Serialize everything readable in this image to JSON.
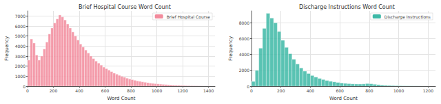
{
  "chart_data": [
    {
      "type": "histogram",
      "title": "Brief Hospital Course Word Count",
      "xlabel": "Word Count",
      "ylabel": "Frequency",
      "series": [
        {
          "name": "Brief Hospital Course",
          "color": "#f28b9c",
          "bins": [
            0,
            20,
            40,
            60,
            80,
            100,
            120,
            140,
            160,
            180,
            200,
            220,
            240,
            260,
            280,
            300,
            320,
            340,
            360,
            380,
            400,
            420,
            440,
            460,
            480,
            500,
            520,
            540,
            560,
            580,
            600,
            620,
            640,
            660,
            680,
            700,
            720,
            740,
            760,
            780,
            800,
            820,
            840,
            860,
            880,
            900,
            920,
            940,
            960,
            980,
            1000,
            1020,
            1040,
            1060,
            1080,
            1100,
            1120,
            1140,
            1160,
            1180,
            1200,
            1220,
            1240,
            1260,
            1280,
            1300,
            1320,
            1340,
            1360,
            1380,
            1400,
            1420,
            1440
          ],
          "values": [
            2600,
            4700,
            4300,
            3100,
            2600,
            3000,
            3700,
            4400,
            5200,
            5800,
            6300,
            6700,
            7100,
            6900,
            6600,
            6200,
            5800,
            5400,
            5000,
            4600,
            4200,
            3900,
            3600,
            3300,
            3000,
            2750,
            2500,
            2300,
            2100,
            1900,
            1750,
            1600,
            1450,
            1300,
            1200,
            1080,
            980,
            890,
            800,
            720,
            650,
            590,
            530,
            480,
            430,
            390,
            350,
            310,
            280,
            250,
            225,
            200,
            180,
            160,
            145,
            130,
            115,
            105,
            95,
            85,
            75,
            68,
            60,
            54,
            48,
            43,
            38,
            34,
            30,
            27,
            24,
            21
          ]
        }
      ],
      "xlim": [
        0,
        1450
      ],
      "xticks": [
        0,
        200,
        400,
        600,
        800,
        1000,
        1200,
        1400
      ],
      "ylim": [
        0,
        7500
      ],
      "yticks": [
        0,
        1000,
        2000,
        3000,
        4000,
        5000,
        6000,
        7000
      ],
      "grid": true,
      "legend": "upper right"
    },
    {
      "type": "histogram",
      "title": "Discharge Instructions Word Count",
      "xlabel": "Word Count",
      "ylabel": "Frequency",
      "series": [
        {
          "name": "Discharge Instructions",
          "color": "#3db8a6",
          "bins": [
            0,
            25,
            50,
            75,
            100,
            125,
            150,
            175,
            200,
            225,
            250,
            275,
            300,
            325,
            350,
            375,
            400,
            425,
            450,
            475,
            500,
            525,
            550,
            575,
            600,
            625,
            650,
            675,
            700,
            725,
            750,
            775,
            800,
            825,
            850,
            875,
            900,
            925,
            950,
            975,
            1000,
            1025,
            1050,
            1075,
            1100,
            1125,
            1150,
            1175,
            1200
          ],
          "values": [
            600,
            2000,
            4800,
            7300,
            9200,
            8600,
            8000,
            6900,
            5800,
            4900,
            4100,
            3400,
            2800,
            2300,
            1900,
            1600,
            1350,
            1150,
            980,
            840,
            720,
            620,
            540,
            470,
            410,
            360,
            320,
            290,
            270,
            260,
            280,
            330,
            300,
            240,
            190,
            150,
            120,
            100,
            85,
            70,
            60,
            50,
            42,
            36,
            30,
            25,
            20,
            16
          ]
        }
      ],
      "xlim": [
        0,
        1250
      ],
      "xticks": [
        0,
        200,
        400,
        600,
        800,
        1000,
        1200
      ],
      "ylim": [
        0,
        9500
      ],
      "yticks": [
        0,
        2000,
        4000,
        6000,
        8000
      ],
      "grid": true,
      "legend": "upper right"
    }
  ]
}
